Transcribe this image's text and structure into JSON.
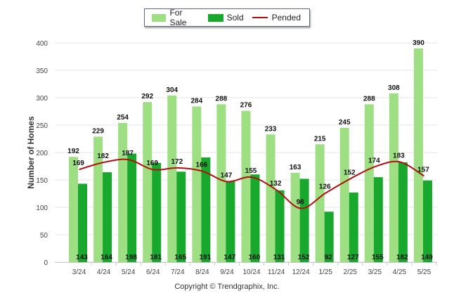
{
  "chart_data": {
    "type": "bar",
    "categories": [
      "3/24",
      "4/24",
      "5/24",
      "6/24",
      "7/24",
      "8/24",
      "9/24",
      "10/24",
      "11/24",
      "12/24",
      "1/25",
      "2/25",
      "3/25",
      "4/25",
      "5/25"
    ],
    "series": [
      {
        "name": "For Sale",
        "kind": "bar",
        "color": "#9fdf83",
        "values": [
          192,
          229,
          254,
          292,
          304,
          284,
          288,
          276,
          233,
          163,
          215,
          245,
          288,
          308,
          390
        ]
      },
      {
        "name": "Sold",
        "kind": "bar",
        "color": "#18a82e",
        "values": [
          143,
          164,
          198,
          181,
          165,
          191,
          147,
          160,
          131,
          152,
          92,
          127,
          155,
          182,
          149
        ]
      },
      {
        "name": "Pended",
        "kind": "line",
        "color": "#b01010",
        "values": [
          169,
          182,
          187,
          169,
          172,
          166,
          147,
          155,
          132,
          98,
          126,
          152,
          174,
          183,
          157
        ]
      }
    ],
    "ylabel": "Number of Homes",
    "ylim": [
      0,
      400
    ],
    "yticks": [
      0,
      50,
      100,
      150,
      200,
      250,
      300,
      350,
      400
    ],
    "legend_position": "top-center",
    "grid": true
  },
  "footer": {
    "copyright": "Copyright © Trendgraphix, Inc."
  }
}
